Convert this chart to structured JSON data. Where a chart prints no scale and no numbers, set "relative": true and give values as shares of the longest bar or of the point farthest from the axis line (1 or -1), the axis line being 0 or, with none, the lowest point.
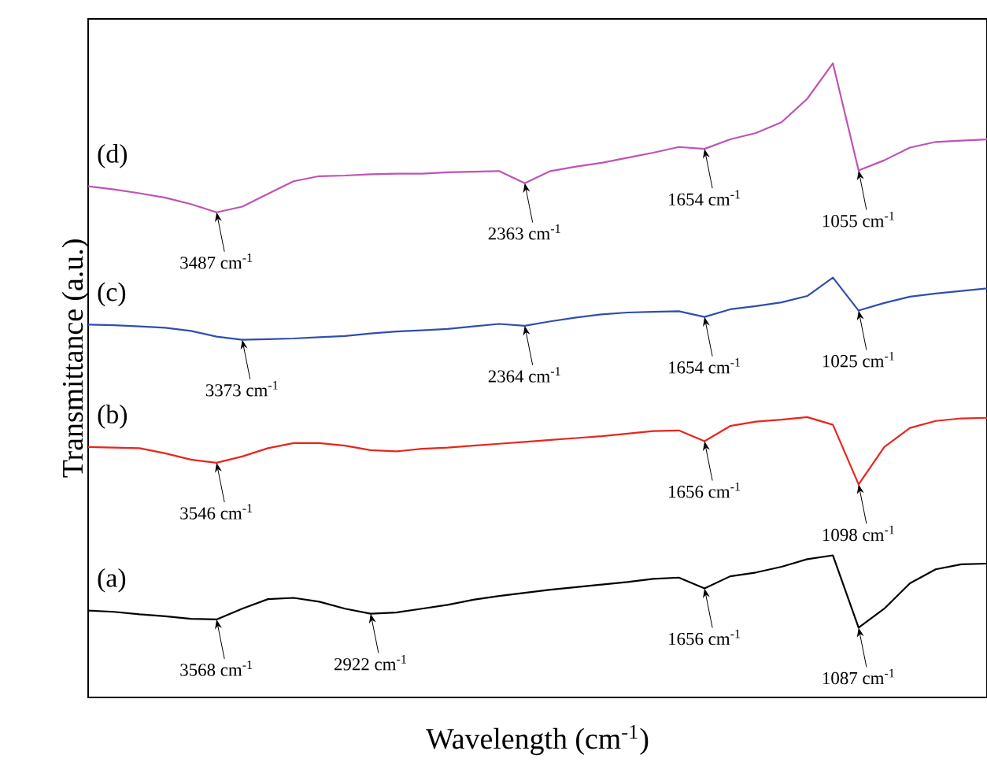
{
  "chart_data": {
    "type": "line",
    "relative": true,
    "tick_labels": false,
    "marker": "none",
    "line_style": "solid",
    "xlabel": "Wavelength (cm$^{-1}$)",
    "ylabel": "Transmittance (a.u.)",
    "categories": [
      null,
      null,
      null,
      null,
      null,
      null,
      null,
      null,
      null,
      null,
      null,
      null,
      null,
      null,
      null,
      null,
      null,
      null,
      null,
      null,
      null,
      null,
      null,
      null,
      null,
      null,
      null,
      null,
      null,
      null,
      null,
      null,
      null,
      null,
      null,
      null
    ],
    "series": [
      {
        "name": "(a)",
        "color": "#000000",
        "values": [
          0.137,
          0.135,
          0.131,
          0.128,
          0.124,
          0.123,
          0.14,
          0.155,
          0.157,
          0.151,
          0.14,
          0.132,
          0.134,
          0.14,
          0.146,
          0.154,
          0.16,
          0.165,
          0.17,
          0.174,
          0.178,
          0.182,
          0.187,
          0.189,
          0.172,
          0.191,
          0.197,
          0.206,
          0.218,
          0.224,
          0.11,
          0.14,
          0.18,
          0.202,
          0.21,
          0.211
        ]
      },
      {
        "name": "(b)",
        "color": "#e8251c",
        "values": [
          0.395,
          0.394,
          0.393,
          0.385,
          0.375,
          0.37,
          0.38,
          0.393,
          0.401,
          0.401,
          0.397,
          0.39,
          0.388,
          0.392,
          0.394,
          0.397,
          0.4,
          0.403,
          0.406,
          0.409,
          0.412,
          0.416,
          0.42,
          0.421,
          0.404,
          0.428,
          0.435,
          0.438,
          0.442,
          0.43,
          0.336,
          0.395,
          0.425,
          0.436,
          0.44,
          0.441
        ]
      },
      {
        "name": "(c)",
        "color": "#2f4eae",
        "values": [
          0.588,
          0.587,
          0.585,
          0.583,
          0.578,
          0.569,
          0.564,
          0.565,
          0.566,
          0.568,
          0.57,
          0.574,
          0.577,
          0.579,
          0.581,
          0.585,
          0.589,
          0.586,
          0.593,
          0.599,
          0.604,
          0.607,
          0.608,
          0.609,
          0.6,
          0.612,
          0.617,
          0.623,
          0.633,
          0.662,
          0.61,
          0.622,
          0.632,
          0.637,
          0.641,
          0.645
        ]
      },
      {
        "name": "(d)",
        "color": "#c052b6",
        "values": [
          0.806,
          0.801,
          0.795,
          0.788,
          0.778,
          0.765,
          0.774,
          0.794,
          0.814,
          0.822,
          0.823,
          0.825,
          0.826,
          0.826,
          0.828,
          0.829,
          0.83,
          0.811,
          0.83,
          0.837,
          0.843,
          0.851,
          0.859,
          0.868,
          0.865,
          0.88,
          0.89,
          0.907,
          0.944,
          1,
          0.831,
          0.847,
          0.867,
          0.876,
          0.878,
          0.88
        ]
      }
    ],
    "annotations": [
      {
        "text": "3487 cm$^{-1}$",
        "y": 0.765
      },
      {
        "text": "2363 cm$^{-1}$",
        "y": 0.811
      },
      {
        "text": "1654 cm$^{-1}$",
        "y": 0.865
      },
      {
        "text": "1055 cm$^{-1}$",
        "y": 0.831
      },
      {
        "text": "3373 cm$^{-1}$",
        "y": 0.564
      },
      {
        "text": "2364 cm$^{-1}$",
        "y": 0.586
      },
      {
        "text": "1654 cm$^{-1}$",
        "y": 0.6
      },
      {
        "text": "1025 cm$^{-1}$",
        "y": 0.61
      },
      {
        "text": "3546 cm$^{-1}$",
        "y": 0.37
      },
      {
        "text": "1656 cm$^{-1}$",
        "y": 0.404
      },
      {
        "text": "1098 cm$^{-1}$",
        "y": 0.336
      },
      {
        "text": "3568 cm$^{-1}$",
        "y": 0.123
      },
      {
        "text": "2922 cm$^{-1}$",
        "y": 0.132
      },
      {
        "text": "1656 cm$^{-1}$",
        "y": 0.172
      },
      {
        "text": "1087 cm$^{-1}$",
        "y": 0.11
      }
    ]
  }
}
